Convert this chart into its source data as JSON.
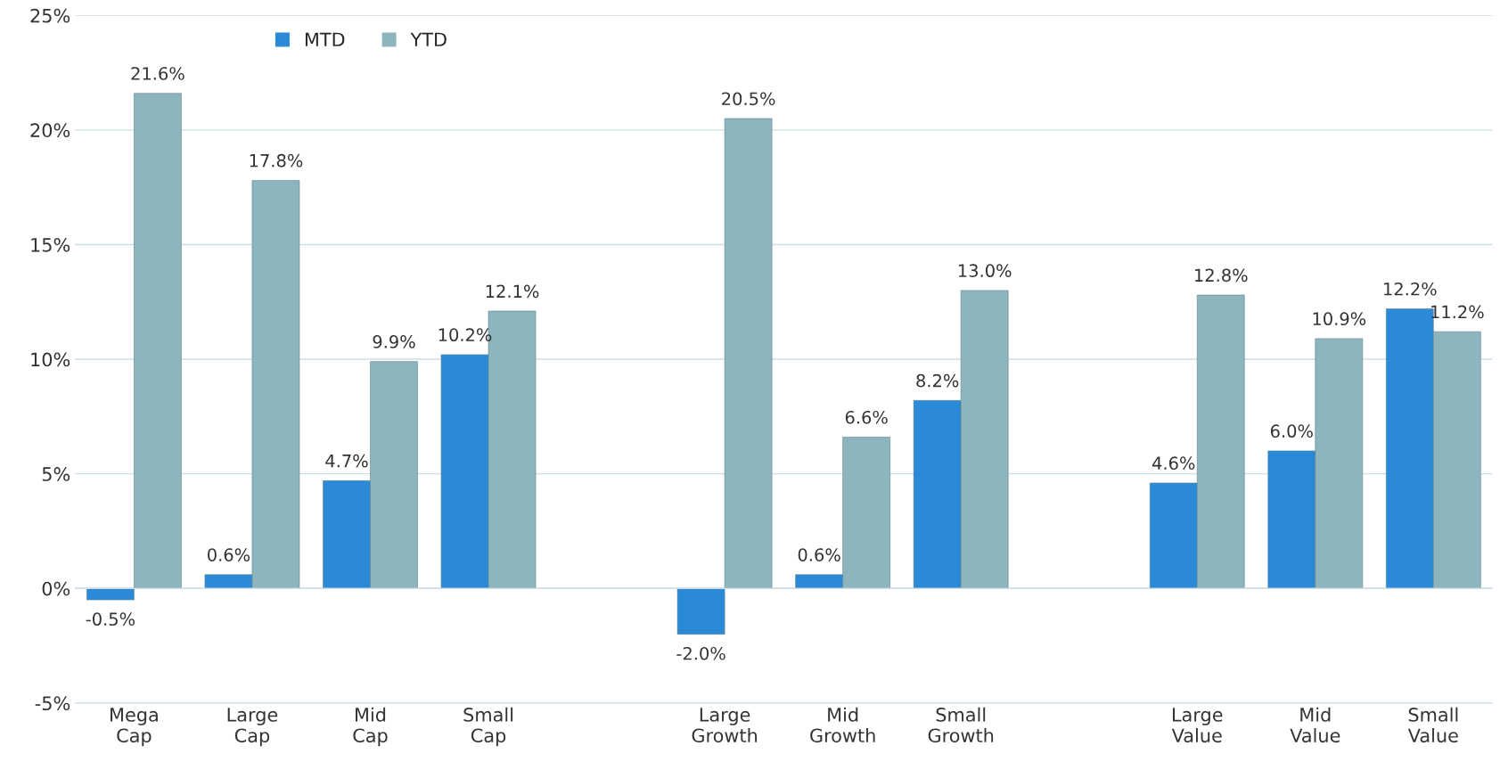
{
  "chart_data": {
    "type": "bar",
    "categories": [
      "Mega Cap",
      "Large Cap",
      "Mid Cap",
      "Small Cap",
      null,
      "Large Growth",
      "Mid Growth",
      "Small Growth",
      null,
      "Large Value",
      "Mid Value",
      "Small Value"
    ],
    "series": [
      {
        "name": "MTD",
        "color": "#2a8ad8",
        "values": [
          -0.5,
          0.6,
          4.7,
          10.2,
          null,
          -2.0,
          0.6,
          8.2,
          null,
          4.6,
          6.0,
          12.2
        ],
        "value_labels": [
          "-0.5%",
          "0.6%",
          "4.7%",
          "10.2%",
          null,
          "-2.0%",
          "0.6%",
          "8.2%",
          null,
          "4.6%",
          "6.0%",
          "12.2%"
        ]
      },
      {
        "name": "YTD",
        "color": "#8db5be",
        "values": [
          21.6,
          17.8,
          9.9,
          12.1,
          null,
          20.5,
          6.6,
          13.0,
          null,
          12.8,
          10.9,
          11.2
        ],
        "value_labels": [
          "21.6%",
          "17.8%",
          "9.9%",
          "12.1%",
          null,
          "20.5%",
          "6.6%",
          "13.0%",
          null,
          "12.8%",
          "10.9%",
          "11.2%"
        ]
      }
    ],
    "ylim": [
      -5,
      25
    ],
    "yticks": [
      {
        "value": -5,
        "label": "-5%"
      },
      {
        "value": 0,
        "label": "0%"
      },
      {
        "value": 5,
        "label": "5%"
      },
      {
        "value": 10,
        "label": "10%"
      },
      {
        "value": 15,
        "label": "15%"
      },
      {
        "value": 20,
        "label": "20%"
      },
      {
        "value": 25,
        "label": "25%"
      }
    ],
    "grid": "y",
    "legend": "top left"
  }
}
